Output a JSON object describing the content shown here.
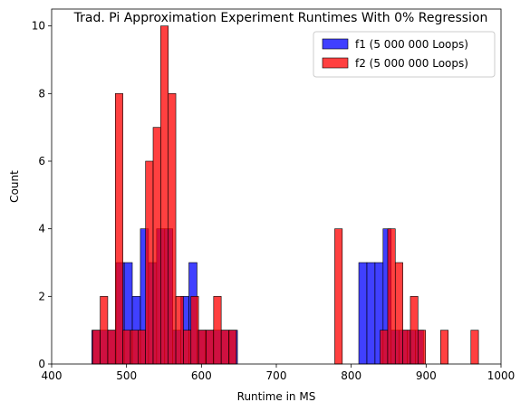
{
  "chart_data": {
    "type": "bar",
    "subtype": "overlaid-histogram",
    "title": "Trad. Pi Approximation Experiment Runtimes With 0% Regression",
    "xlabel": "Runtime in MS",
    "ylabel": "Count",
    "xlim": [
      400,
      1000
    ],
    "ylim": [
      0,
      10.5
    ],
    "xticks": [
      400,
      500,
      600,
      700,
      800,
      900,
      1000
    ],
    "yticks": [
      0,
      2,
      4,
      6,
      8,
      10
    ],
    "legend_position": "top-right",
    "series": [
      {
        "name": "f1 (5 000 000 Loops)",
        "color": "#0000ff",
        "bins": [
          {
            "x0": 453.7,
            "x1": 464.5,
            "count": 1
          },
          {
            "x0": 464.5,
            "x1": 475.3,
            "count": 1
          },
          {
            "x0": 475.3,
            "x1": 486.1,
            "count": 1
          },
          {
            "x0": 486.1,
            "x1": 496.9,
            "count": 3
          },
          {
            "x0": 496.9,
            "x1": 507.7,
            "count": 3
          },
          {
            "x0": 507.7,
            "x1": 518.5,
            "count": 2
          },
          {
            "x0": 518.5,
            "x1": 529.3,
            "count": 4
          },
          {
            "x0": 529.3,
            "x1": 540.1,
            "count": 3
          },
          {
            "x0": 540.1,
            "x1": 550.9,
            "count": 4
          },
          {
            "x0": 550.9,
            "x1": 561.7,
            "count": 4
          },
          {
            "x0": 561.7,
            "x1": 572.5,
            "count": 1
          },
          {
            "x0": 572.5,
            "x1": 583.3,
            "count": 2
          },
          {
            "x0": 583.3,
            "x1": 594.1,
            "count": 3
          },
          {
            "x0": 594.1,
            "x1": 604.9,
            "count": 1
          },
          {
            "x0": 604.9,
            "x1": 615.7,
            "count": 1
          },
          {
            "x0": 615.7,
            "x1": 626.5,
            "count": 1
          },
          {
            "x0": 626.5,
            "x1": 637.3,
            "count": 1
          },
          {
            "x0": 637.3,
            "x1": 648.1,
            "count": 1
          },
          {
            "x0": 810.1,
            "x1": 820.9,
            "count": 3
          },
          {
            "x0": 820.9,
            "x1": 831.7,
            "count": 3
          },
          {
            "x0": 831.7,
            "x1": 842.5,
            "count": 3
          },
          {
            "x0": 842.5,
            "x1": 853.3,
            "count": 4
          },
          {
            "x0": 853.3,
            "x1": 864.1,
            "count": 1
          },
          {
            "x0": 864.1,
            "x1": 874.9,
            "count": 1
          },
          {
            "x0": 874.9,
            "x1": 885.7,
            "count": 1
          },
          {
            "x0": 885.7,
            "x1": 896.5,
            "count": 1
          }
        ]
      },
      {
        "name": "f2 (5 000 000 Loops)",
        "color": "#ff0000",
        "bins": [
          {
            "x0": 454.7,
            "x1": 464.8,
            "count": 1
          },
          {
            "x0": 464.8,
            "x1": 474.9,
            "count": 2
          },
          {
            "x0": 474.9,
            "x1": 485.0,
            "count": 1
          },
          {
            "x0": 485.0,
            "x1": 495.1,
            "count": 8
          },
          {
            "x0": 495.1,
            "x1": 505.2,
            "count": 1
          },
          {
            "x0": 505.2,
            "x1": 515.3,
            "count": 1
          },
          {
            "x0": 515.3,
            "x1": 525.4,
            "count": 1
          },
          {
            "x0": 525.4,
            "x1": 535.5,
            "count": 6
          },
          {
            "x0": 535.5,
            "x1": 545.6,
            "count": 7
          },
          {
            "x0": 545.6,
            "x1": 555.7,
            "count": 10
          },
          {
            "x0": 555.7,
            "x1": 565.8,
            "count": 8
          },
          {
            "x0": 565.8,
            "x1": 575.9,
            "count": 2
          },
          {
            "x0": 575.9,
            "x1": 586.0,
            "count": 1
          },
          {
            "x0": 586.0,
            "x1": 596.1,
            "count": 2
          },
          {
            "x0": 596.1,
            "x1": 606.2,
            "count": 1
          },
          {
            "x0": 606.2,
            "x1": 616.3,
            "count": 1
          },
          {
            "x0": 616.3,
            "x1": 626.4,
            "count": 2
          },
          {
            "x0": 626.4,
            "x1": 636.5,
            "count": 1
          },
          {
            "x0": 636.5,
            "x1": 646.6,
            "count": 1
          },
          {
            "x0": 778.0,
            "x1": 788.1,
            "count": 4
          },
          {
            "x0": 838.6,
            "x1": 848.7,
            "count": 1
          },
          {
            "x0": 848.7,
            "x1": 858.8,
            "count": 4
          },
          {
            "x0": 858.8,
            "x1": 868.9,
            "count": 3
          },
          {
            "x0": 868.9,
            "x1": 879.0,
            "count": 1
          },
          {
            "x0": 879.0,
            "x1": 889.1,
            "count": 2
          },
          {
            "x0": 889.1,
            "x1": 899.2,
            "count": 1
          },
          {
            "x0": 919.4,
            "x1": 929.5,
            "count": 1
          },
          {
            "x0": 959.8,
            "x1": 969.9,
            "count": 1
          }
        ]
      }
    ]
  }
}
